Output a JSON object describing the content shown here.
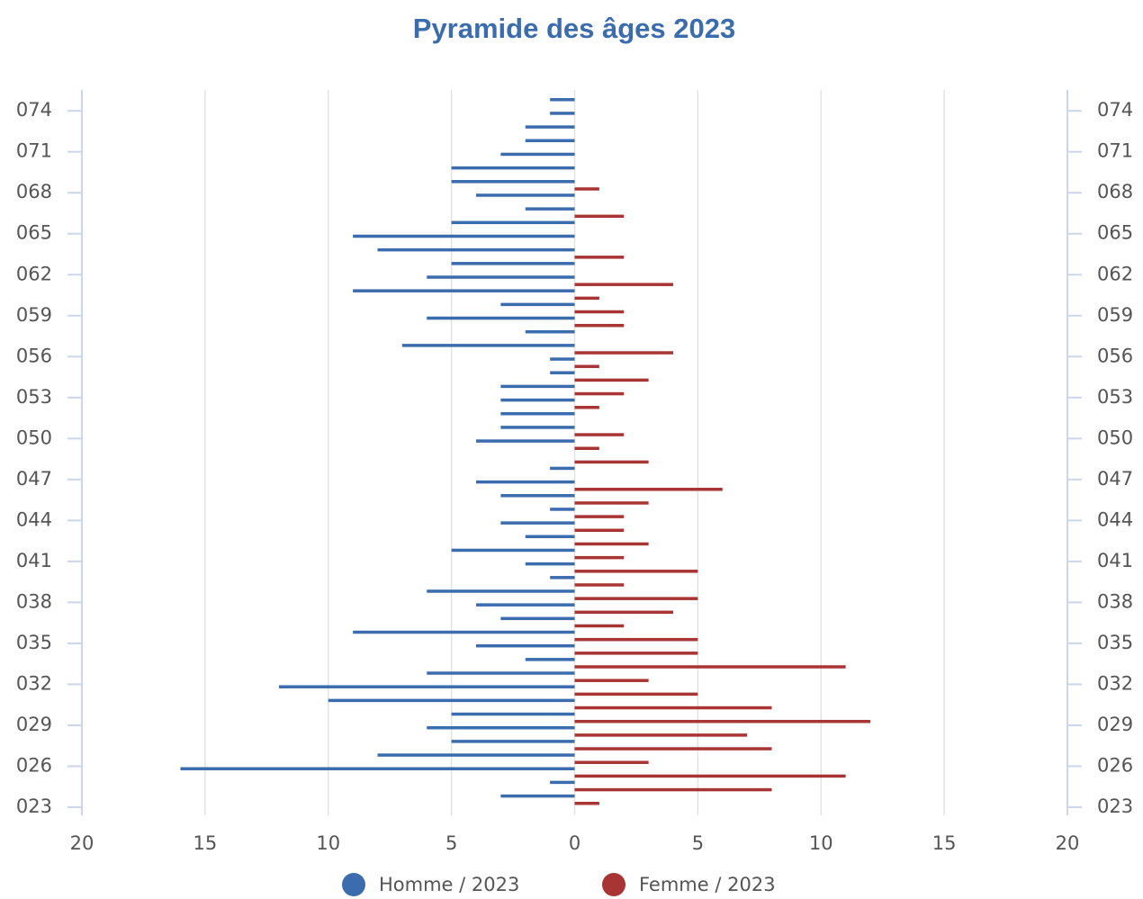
{
  "chart_data": {
    "type": "bar",
    "orientation": "horizontal",
    "title": "Pyramide des âges 2023",
    "categories": [
      "023",
      null,
      null,
      "026",
      null,
      null,
      "029",
      null,
      null,
      "032",
      null,
      null,
      "035",
      null,
      null,
      "038",
      null,
      null,
      "041",
      null,
      null,
      "044",
      null,
      null,
      "047",
      null,
      null,
      "050",
      null,
      null,
      "053",
      null,
      null,
      "056",
      null,
      null,
      "059",
      null,
      null,
      "062",
      null,
      null,
      "065",
      null,
      null,
      "068",
      null,
      null,
      "071",
      null,
      null,
      "074",
      null
    ],
    "series": [
      {
        "name": "Homme / 2023",
        "color": "#3b6cae",
        "values": [
          0,
          -3,
          -1,
          -16,
          -8,
          -5,
          -6,
          -5,
          -10,
          -12,
          -6,
          -2,
          -4,
          -9,
          -3,
          -4,
          -6,
          -1,
          -2,
          -5,
          -2,
          -3,
          -1,
          -3,
          -4,
          -1,
          0,
          -4,
          -3,
          -3,
          -3,
          -3,
          -1,
          -1,
          -7,
          -2,
          -6,
          -3,
          -9,
          -6,
          -5,
          -8,
          -9,
          -5,
          -2,
          -4,
          -5,
          -5,
          -3,
          -2,
          -2,
          -1,
          -1
        ]
      },
      {
        "name": "Femme / 2023",
        "color": "#a83434",
        "values": [
          1,
          8,
          11,
          3,
          8,
          7,
          12,
          8,
          5,
          3,
          11,
          5,
          5,
          2,
          4,
          5,
          2,
          5,
          2,
          3,
          2,
          2,
          3,
          6,
          0,
          3,
          1,
          2,
          0,
          1,
          2,
          3,
          1,
          4,
          0,
          2,
          2,
          1,
          4,
          0,
          2,
          0,
          0,
          2,
          0,
          1,
          0,
          0,
          0,
          0,
          0,
          0,
          0
        ]
      }
    ],
    "xlim": [
      -20,
      20
    ],
    "xticks": [
      {
        "value": -20,
        "label": "20"
      },
      {
        "value": -15,
        "label": "15"
      },
      {
        "value": -10,
        "label": "10"
      },
      {
        "value": -5,
        "label": "5"
      },
      0,
      5,
      10,
      15,
      20
    ],
    "grid": true
  }
}
